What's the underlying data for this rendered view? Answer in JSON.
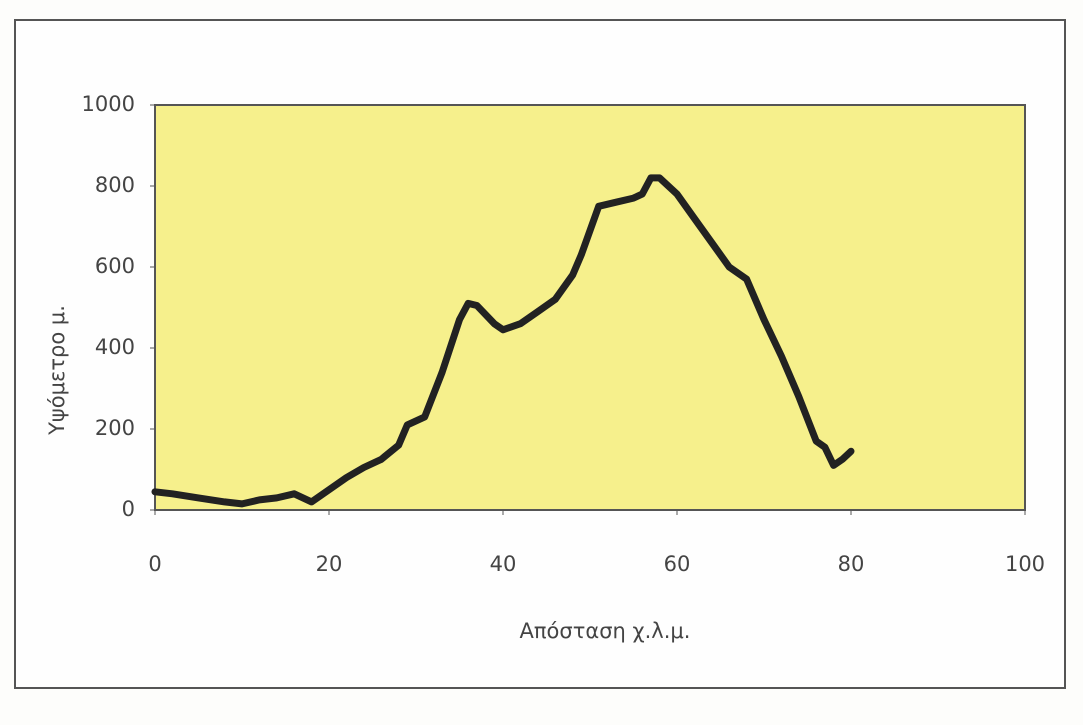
{
  "chart_data": {
    "type": "line",
    "x_label": "Απόσταση χ.λ.μ.",
    "y_label": "Υψόμετρο μ.",
    "x": [
      0,
      2,
      5,
      8,
      10,
      12,
      14,
      16,
      18,
      20,
      22,
      24,
      26,
      28,
      29,
      31,
      33,
      35,
      36,
      37,
      39,
      40,
      42,
      44,
      46,
      48,
      49,
      51,
      53,
      55,
      56,
      57,
      58,
      60,
      62,
      64,
      66,
      68,
      70,
      72,
      74,
      76,
      77,
      78,
      79,
      80
    ],
    "values": [
      45,
      40,
      30,
      20,
      15,
      25,
      30,
      40,
      20,
      50,
      80,
      105,
      125,
      160,
      210,
      230,
      340,
      470,
      510,
      505,
      460,
      445,
      460,
      490,
      520,
      580,
      630,
      750,
      760,
      770,
      780,
      820,
      820,
      780,
      720,
      660,
      600,
      570,
      470,
      380,
      280,
      170,
      155,
      110,
      125,
      145
    ],
    "color": "#222222",
    "plot_background": "#f6f08c",
    "xlim": [
      0,
      100
    ],
    "xticks": [
      0,
      20,
      40,
      60,
      80,
      100
    ],
    "ylim": [
      0,
      1000
    ],
    "yticks": [
      0,
      200,
      400,
      600,
      800,
      1000
    ],
    "grid": false
  }
}
